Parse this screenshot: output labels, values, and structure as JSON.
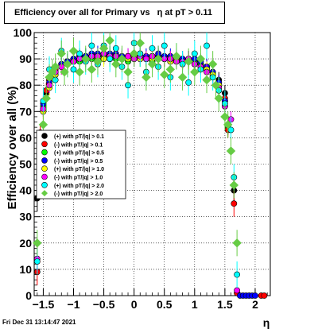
{
  "title": {
    "text_a": "Efficiency over all for Primary vs",
    "text_b": "η at pT > 0.11"
  },
  "footer_timestamp": "Fri Dec 31 13:14:47 2021",
  "chart_data": {
    "type": "scatter",
    "title": "Efficiency over all for Primary vs η at pT > 0.11",
    "xlabel": "η",
    "ylabel": "Efficiency over all (%)",
    "xlim": [
      -1.65,
      2.25
    ],
    "ylim": [
      0,
      100
    ],
    "xticks": [
      -1.5,
      -1,
      -0.5,
      0,
      0.5,
      1,
      1.5,
      2
    ],
    "xtick_labels": [
      "−1.5",
      "−1",
      "−0.5",
      "0",
      "0.5",
      "1",
      "1.5",
      "2"
    ],
    "yticks": [
      0,
      10,
      20,
      30,
      40,
      50,
      60,
      70,
      80,
      90,
      100
    ],
    "grid": true,
    "legend_position": "left-middle",
    "series": [
      {
        "name": "(+) with pT/|q| > 0.1",
        "color": "#000000",
        "marker": "circle",
        "x": [
          -1.6,
          -1.55,
          -1.5,
          -1.45,
          -1.4,
          -1.3,
          -1.2,
          -1.1,
          -1.0,
          -0.9,
          -0.8,
          -0.7,
          -0.6,
          -0.5,
          -0.4,
          -0.3,
          -0.2,
          -0.1,
          0.0,
          0.1,
          0.2,
          0.3,
          0.4,
          0.5,
          0.6,
          0.7,
          0.8,
          0.9,
          1.0,
          1.1,
          1.2,
          1.3,
          1.4,
          1.5,
          1.55,
          1.6,
          1.65,
          1.7
        ],
        "y": [
          37,
          60,
          71,
          77,
          82,
          86,
          88,
          89,
          90,
          90,
          91,
          91,
          91,
          91,
          91,
          90,
          90,
          91,
          91,
          91,
          90,
          90,
          91,
          90,
          90,
          90,
          89,
          90,
          89,
          88,
          87,
          85,
          82,
          77,
          64,
          55,
          40,
          1
        ]
      },
      {
        "name": "(-) with pT/|q| > 0.1",
        "color": "#ff0000",
        "marker": "circle",
        "x": [
          -1.6,
          -1.55,
          -1.5,
          -1.45,
          -1.4,
          -1.3,
          -1.2,
          -1.1,
          -1.0,
          -0.9,
          -0.8,
          -0.7,
          -0.6,
          -0.5,
          -0.4,
          -0.3,
          -0.2,
          -0.1,
          0.0,
          0.1,
          0.2,
          0.3,
          0.4,
          0.5,
          0.6,
          0.7,
          0.8,
          0.9,
          1.0,
          1.1,
          1.2,
          1.3,
          1.4,
          1.5,
          1.55,
          1.6,
          1.65,
          1.7,
          2.1,
          2.15
        ],
        "y": [
          9,
          62,
          70,
          78,
          82,
          86,
          88,
          89,
          90,
          91,
          91,
          91,
          90,
          91,
          91,
          91,
          90,
          90,
          91,
          90,
          90,
          91,
          90,
          90,
          90,
          89,
          90,
          89,
          89,
          88,
          87,
          84,
          81,
          75,
          63,
          55,
          35,
          1,
          0,
          0
        ]
      },
      {
        "name": "(+) with pT/|q| > 0.5",
        "color": "#00ff00",
        "marker": "circle",
        "x": [
          -1.5,
          -1.4,
          -1.3,
          -1.2,
          -1.1,
          -1.0,
          -0.9,
          -0.8,
          -0.7,
          -0.6,
          -0.5,
          -0.4,
          -0.3,
          -0.2,
          -0.1,
          0.0,
          0.1,
          0.2,
          0.3,
          0.4,
          0.5,
          0.6,
          0.7,
          0.8,
          0.9,
          1.0,
          1.1,
          1.2,
          1.3,
          1.4,
          1.5
        ],
        "y": [
          72,
          80,
          84,
          87,
          88,
          89,
          89,
          90,
          90,
          90,
          91,
          90,
          90,
          90,
          89,
          90,
          90,
          90,
          89,
          90,
          90,
          89,
          90,
          89,
          89,
          89,
          88,
          86,
          84,
          80,
          74
        ]
      },
      {
        "name": "(-) with pT/|q| > 0.5",
        "color": "#0000ff",
        "marker": "circle",
        "x": [
          -1.5,
          -1.4,
          -1.3,
          -1.2,
          -1.1,
          -1.0,
          -0.9,
          -0.8,
          -0.7,
          -0.6,
          -0.5,
          -0.4,
          -0.3,
          -0.2,
          -0.1,
          0.0,
          0.1,
          0.2,
          0.3,
          0.4,
          0.5,
          0.6,
          0.7,
          0.8,
          0.9,
          1.0,
          1.1,
          1.2,
          1.3,
          1.4,
          1.5,
          1.75,
          1.8,
          1.85,
          1.9,
          1.95,
          2.0
        ],
        "y": [
          73,
          81,
          85,
          88,
          89,
          90,
          91,
          91,
          92,
          92,
          92,
          92,
          92,
          91,
          91,
          92,
          92,
          91,
          91,
          92,
          91,
          91,
          91,
          90,
          90,
          90,
          89,
          87,
          85,
          81,
          74,
          0,
          0,
          0,
          0,
          0,
          0
        ]
      },
      {
        "name": "(+) with pT/|q| > 1.0",
        "color": "#ffff00",
        "marker": "circle",
        "x": [
          -1.5,
          -1.4,
          -1.3,
          -1.2,
          -1.1,
          -1.0,
          -0.9,
          -0.8,
          -0.7,
          -0.6,
          -0.5,
          -0.4,
          -0.3,
          -0.2,
          -0.1,
          0.0,
          0.1,
          0.2,
          0.3,
          0.4,
          0.5,
          0.6,
          0.7,
          0.8,
          0.9,
          1.0,
          1.1,
          1.2,
          1.3,
          1.4,
          1.5
        ],
        "y": [
          70,
          79,
          84,
          87,
          88,
          89,
          90,
          90,
          91,
          90,
          90,
          90,
          91,
          90,
          90,
          91,
          90,
          90,
          90,
          90,
          90,
          89,
          90,
          89,
          89,
          88,
          87,
          86,
          84,
          80,
          72
        ]
      },
      {
        "name": "(-) with pT/|q| > 1.0",
        "color": "#ff00ff",
        "marker": "circle",
        "x": [
          -1.6,
          -1.5,
          -1.4,
          -1.3,
          -1.2,
          -1.1,
          -1.0,
          -0.9,
          -0.8,
          -0.7,
          -0.6,
          -0.5,
          -0.4,
          -0.3,
          -0.2,
          -0.1,
          0.0,
          0.1,
          0.2,
          0.3,
          0.4,
          0.5,
          0.6,
          0.7,
          0.8,
          0.9,
          1.0,
          1.1,
          1.2,
          1.3,
          1.4,
          1.5,
          1.6,
          1.7
        ],
        "y": [
          14,
          71,
          80,
          85,
          87,
          88,
          89,
          90,
          90,
          91,
          91,
          92,
          91,
          91,
          90,
          91,
          90,
          91,
          90,
          91,
          90,
          90,
          90,
          89,
          89,
          90,
          88,
          87,
          85,
          83,
          79,
          72,
          67,
          2
        ]
      },
      {
        "name": "(+) with pT/|q| > 2.0",
        "color": "#00ffff",
        "marker": "circle",
        "x": [
          -1.6,
          -1.5,
          -1.4,
          -1.3,
          -1.2,
          -1.1,
          -1.0,
          -0.9,
          -0.8,
          -0.7,
          -0.6,
          -0.5,
          -0.4,
          -0.3,
          -0.2,
          -0.1,
          0.0,
          0.1,
          0.2,
          0.3,
          0.4,
          0.5,
          0.6,
          0.7,
          0.8,
          0.9,
          1.0,
          1.1,
          1.2,
          1.3,
          1.4,
          1.5,
          1.6,
          1.65,
          1.7
        ],
        "y": [
          13,
          74,
          86,
          82,
          93,
          88,
          86,
          92,
          89,
          95,
          88,
          95,
          90,
          94,
          87,
          80,
          96,
          92,
          85,
          94,
          87,
          95,
          83,
          91,
          88,
          81,
          92,
          86,
          95,
          83,
          78,
          73,
          63,
          45,
          8
        ]
      },
      {
        "name": "(-) with pT/|q| > 2.0",
        "color": "#66cc44",
        "marker": "diamond",
        "x": [
          -1.6,
          -1.5,
          -1.45,
          -1.4,
          -1.35,
          -1.3,
          -1.2,
          -1.15,
          -1.1,
          -1.0,
          -0.9,
          -0.8,
          -0.7,
          -0.6,
          -0.5,
          -0.4,
          -0.3,
          -0.2,
          -0.1,
          0.0,
          0.1,
          0.2,
          0.3,
          0.4,
          0.5,
          0.6,
          0.7,
          0.8,
          0.9,
          1.0,
          1.1,
          1.2,
          1.3,
          1.35,
          1.4,
          1.5,
          1.55,
          1.6,
          1.65,
          1.7
        ],
        "y": [
          20,
          65,
          75,
          83,
          85,
          87,
          92,
          85,
          88,
          93,
          85,
          90,
          86,
          89,
          94,
          97,
          88,
          90,
          85,
          92,
          96,
          83,
          88,
          90,
          84,
          86,
          91,
          83,
          89,
          85,
          90,
          82,
          88,
          80,
          75,
          68,
          65,
          55,
          42,
          20
        ]
      }
    ]
  }
}
